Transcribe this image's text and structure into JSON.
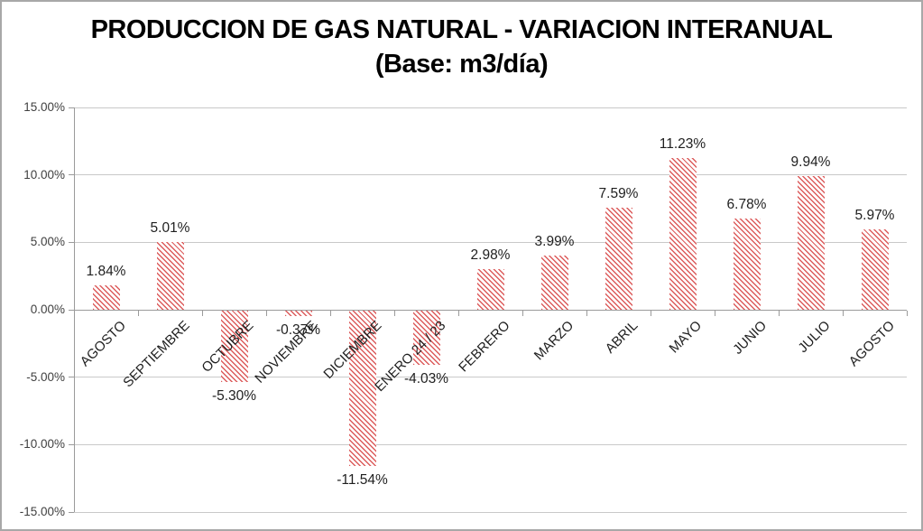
{
  "title": {
    "line1": "PRODUCCION DE GAS NATURAL - VARIACION INTERANUAL",
    "line2": "(Base: m3/día)"
  },
  "chart_data": {
    "type": "bar",
    "title": "PRODUCCION DE GAS NATURAL - VARIACION INTERANUAL (Base: m3/día)",
    "categories": [
      "AGOSTO",
      "SEPTIEMBRE",
      "OCTUBRE",
      "NOVIEMBRE",
      "DICIEMBRE",
      "ENERO 24 / 23",
      "FEBRERO",
      "MARZO",
      "ABRIL",
      "MAYO",
      "JUNIO",
      "JULIO",
      "AGOSTO"
    ],
    "values": [
      1.84,
      5.01,
      -5.3,
      -0.37,
      -11.54,
      -4.03,
      2.98,
      3.99,
      7.59,
      11.23,
      6.78,
      9.94,
      5.97
    ],
    "value_labels": [
      "1.84%",
      "5.01%",
      "-5.30%",
      "-0.37%",
      "-11.54%",
      "-4.03%",
      "2.98%",
      "3.99%",
      "7.59%",
      "11.23%",
      "6.78%",
      "9.94%",
      "5.97%"
    ],
    "xlabel": "",
    "ylabel": "",
    "ylim": [
      -15,
      15
    ],
    "ytick_values": [
      15,
      10,
      5,
      0,
      -5,
      -10,
      -15
    ],
    "ytick_labels": [
      "15.00%",
      "10.00%",
      "5.00%",
      "0.00%",
      "-5.00%",
      "-10.00%",
      "-15.00%"
    ],
    "grid": true,
    "legend": "none",
    "bar_fill_style": "diagonal-hatch",
    "colors": {
      "bar_stripe": "#dc5c5c",
      "bar_background": "#ffffff",
      "gridline": "#c9c9c9",
      "axis_line": "#9b9b9b",
      "title_text": "#000000",
      "tick_label_text": "#404040",
      "data_label_text": "#1f1f1f"
    }
  }
}
